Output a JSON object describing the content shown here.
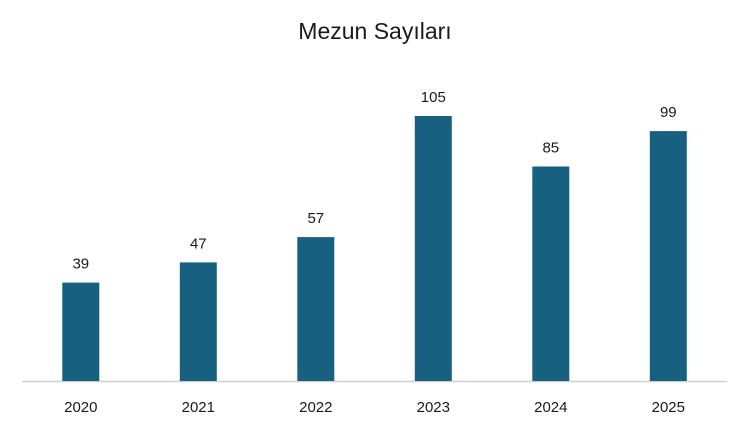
{
  "chart_data": {
    "type": "bar",
    "title": "Mezun Sayıları",
    "categories": [
      "2020",
      "2021",
      "2022",
      "2023",
      "2024",
      "2025"
    ],
    "values": [
      39,
      47,
      57,
      105,
      85,
      99
    ],
    "xlabel": "",
    "ylabel": "",
    "ylim": [
      0,
      110
    ],
    "grid": false,
    "legend": "none",
    "data_labels": true,
    "bar_color": "#17607f",
    "axis_color": "#d0d0d0"
  }
}
